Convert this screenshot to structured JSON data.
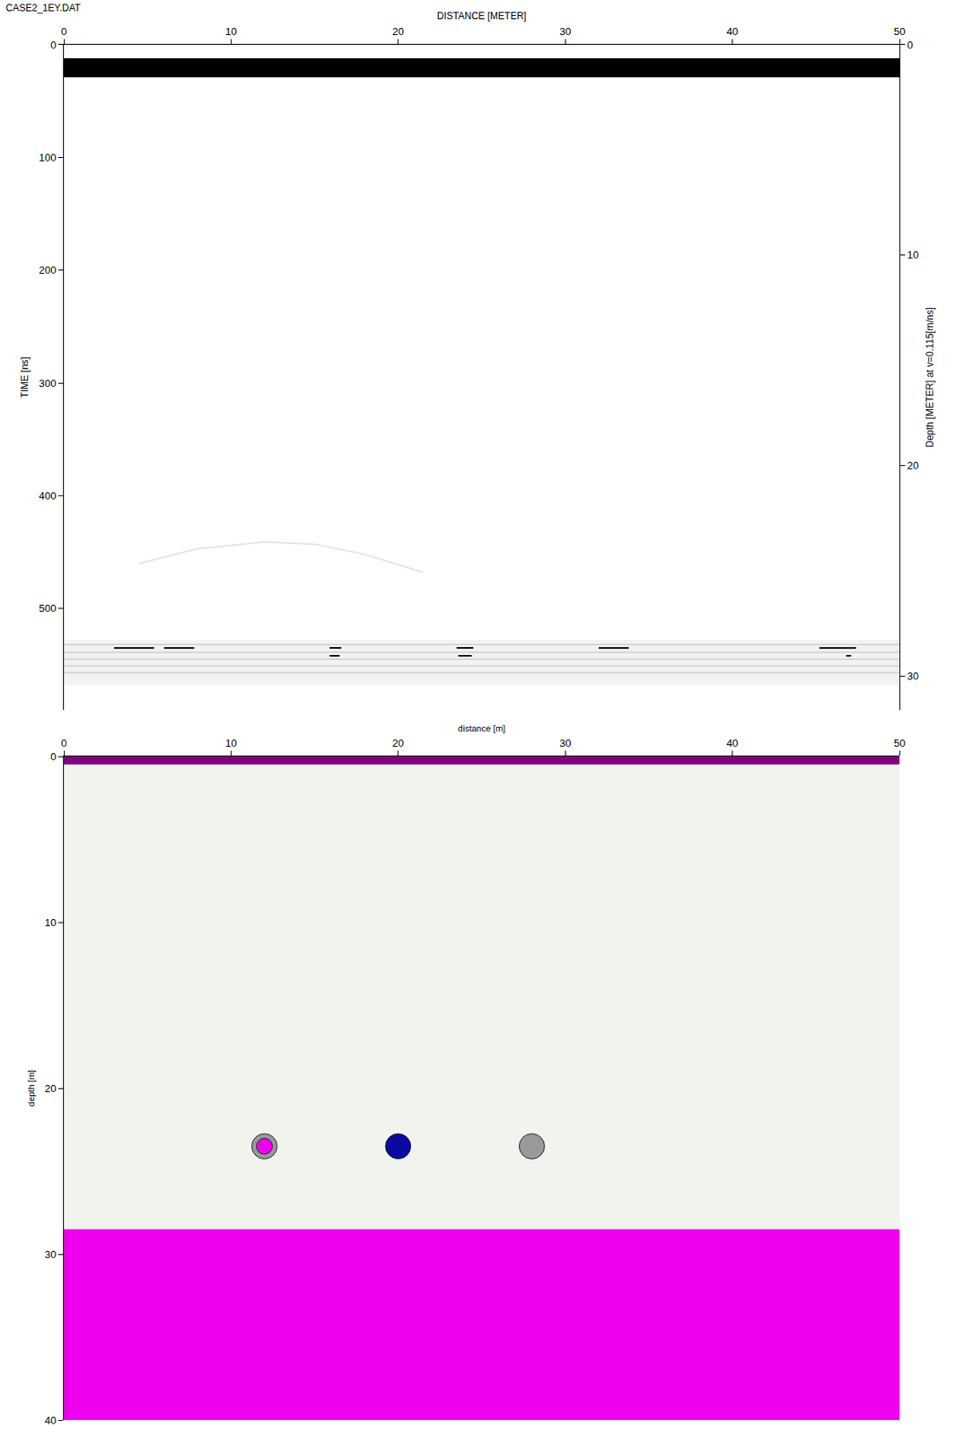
{
  "chart_data": [
    {
      "type": "radargram",
      "title": "CASE2_1EY.DAT",
      "x_label": "DISTANCE [METER]",
      "y_label": "TIME [ns]",
      "y2_label": "Depth [METER] at v=0.115[m/ns]",
      "xlim": [
        0,
        50
      ],
      "xticks": [
        0,
        10,
        20,
        30,
        40,
        50
      ],
      "ylim": [
        0,
        590
      ],
      "yticks": [
        0,
        100,
        200,
        300,
        400,
        500
      ],
      "y2lim": [
        0,
        31.6
      ],
      "y2ticks": [
        0,
        10,
        20,
        30
      ],
      "bands": [
        {
          "from": 12,
          "to": 29,
          "color": "#000000"
        },
        {
          "from": 528,
          "to": 568,
          "color": "#f2f2f2"
        }
      ],
      "series": [
        {
          "color": "#d4d4d4",
          "x": [
            0,
            50,
            null,
            0,
            50,
            null,
            0,
            50,
            null,
            0,
            50,
            null,
            0,
            50
          ],
          "values": [
            532,
            532,
            null,
            539,
            539,
            null,
            545,
            545,
            null,
            551,
            551,
            null,
            557,
            557
          ]
        },
        {
          "color": "#e4e4e4",
          "x": [
            4.5,
            8,
            12,
            15,
            18,
            21.5
          ],
          "values": [
            460,
            447,
            441,
            443,
            452,
            468
          ]
        },
        {
          "color": "#000000",
          "x": [
            3,
            5.4,
            null,
            6,
            7.8,
            null,
            15.9,
            16.6,
            null,
            23.5,
            24.5,
            null,
            32,
            33.8,
            null,
            45.2,
            47.4,
            null,
            15.9,
            16.5,
            null,
            23.6,
            24.4,
            null,
            46.8,
            47.1
          ],
          "values": [
            535,
            535,
            null,
            535,
            535,
            null,
            535,
            535,
            null,
            535,
            535,
            null,
            535,
            535,
            null,
            535,
            535,
            null,
            542,
            542,
            null,
            542,
            542,
            null,
            542,
            542
          ]
        }
      ]
    },
    {
      "type": "section",
      "x_label": "distance [m]",
      "y_label": "depth [m]",
      "xlim": [
        0,
        50
      ],
      "xticks": [
        0,
        10,
        20,
        30,
        40,
        50
      ],
      "ylim": [
        0,
        40
      ],
      "yticks": [
        0,
        10,
        20,
        30,
        40
      ],
      "layers": [
        {
          "top": 0,
          "bottom": 0.5,
          "color": "#800080"
        },
        {
          "top": 0.5,
          "bottom": 28.5,
          "color": "#f1f3ef"
        },
        {
          "top": 28.5,
          "bottom": 40,
          "color": "#ee00ee"
        }
      ],
      "objects": [
        {
          "x": 12,
          "depth": 23.5,
          "radius": 0.76,
          "color": "#999999",
          "core_radius": 0.48,
          "core_color": "#ee00ee"
        },
        {
          "x": 20,
          "depth": 23.5,
          "radius": 0.76,
          "color": "#0a0aa0"
        },
        {
          "x": 28,
          "depth": 23.5,
          "radius": 0.76,
          "color": "#999999"
        }
      ]
    }
  ]
}
